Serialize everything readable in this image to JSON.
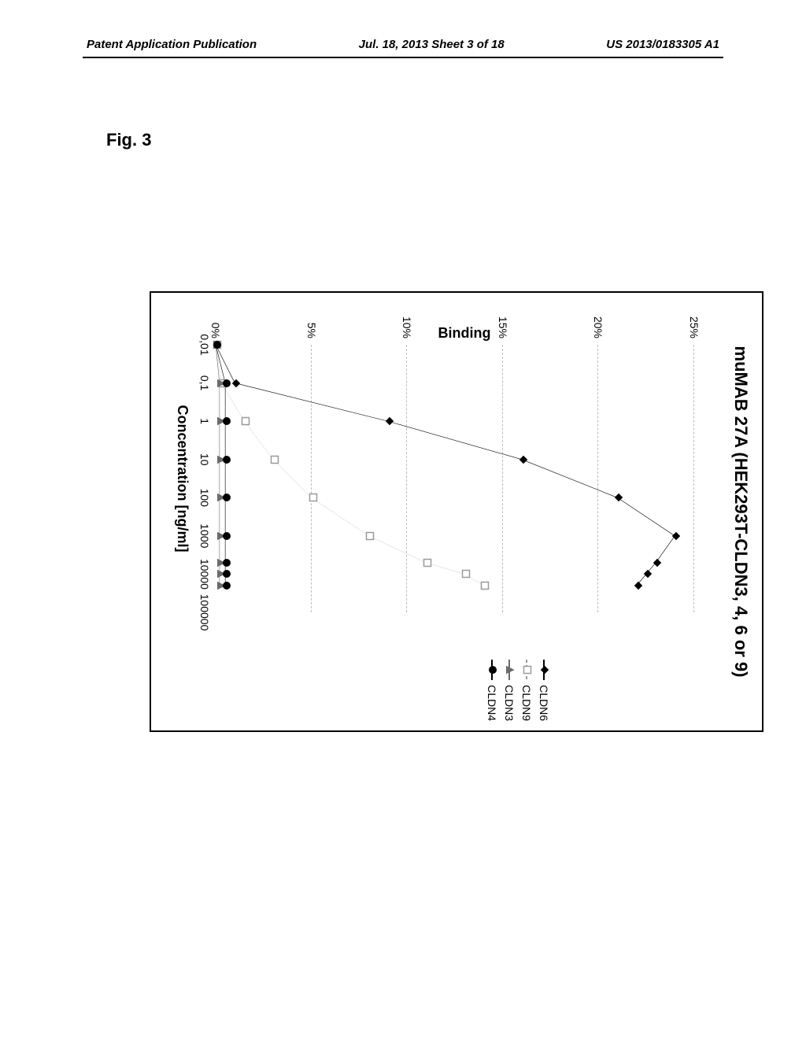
{
  "header": {
    "left": "Patent Application Publication",
    "center": "Jul. 18, 2013  Sheet 3 of 18",
    "right": "US 2013/0183305 A1"
  },
  "figure_label": "Fig. 3",
  "chart": {
    "type": "line",
    "title": "muMAB 27A (HEK293T-CLDN3, 4, 6 or 9)",
    "xlabel": "Concentration [ng/ml]",
    "ylabel": "Binding",
    "x_scale": "log",
    "xlim_log10": [
      -2,
      5
    ],
    "ylim": [
      0,
      26
    ],
    "y_ticks": [
      0,
      5,
      10,
      15,
      20,
      25
    ],
    "y_tick_labels": [
      "0%",
      "5%",
      "10%",
      "15%",
      "20%",
      "25%"
    ],
    "x_ticks_log10": [
      -2,
      -1,
      0,
      1,
      2,
      3,
      4,
      5
    ],
    "x_tick_labels": [
      "0,01",
      "0,1",
      "1",
      "10",
      "100",
      "1000",
      "10000",
      "100000"
    ],
    "grid_color": "#bdbdbd",
    "background_color": "#ffffff",
    "border_color": "#000000",
    "legend_position": "right",
    "series": [
      {
        "name": "CLDN6",
        "marker": "diamond",
        "color": "#000000",
        "line_style": "solid",
        "line_width": 2,
        "x_log10": [
          -2,
          -1,
          0,
          1,
          2,
          3,
          3.7,
          4,
          4.3
        ],
        "y": [
          0,
          1,
          9,
          16,
          21,
          24,
          23,
          22.5,
          22
        ]
      },
      {
        "name": "CLDN9",
        "marker": "square",
        "color": "#9a9a9a",
        "line_style": "dashed",
        "line_width": 1.5,
        "x_log10": [
          -2,
          -1,
          0,
          1,
          2,
          3,
          3.7,
          4,
          4.3
        ],
        "y": [
          0,
          0.3,
          1.5,
          3,
          5,
          8,
          11,
          13,
          14
        ]
      },
      {
        "name": "CLDN3",
        "marker": "triangle",
        "color": "#6b6b6b",
        "line_style": "solid",
        "line_width": 2,
        "x_log10": [
          -2,
          -1,
          0,
          1,
          2,
          3,
          3.7,
          4,
          4.3
        ],
        "y": [
          0,
          0.2,
          0.2,
          0.2,
          0.2,
          0.2,
          0.2,
          0.2,
          0.2
        ]
      },
      {
        "name": "CLDN4",
        "marker": "circle",
        "color": "#000000",
        "line_style": "solid",
        "line_width": 2,
        "x_log10": [
          -2,
          -1,
          0,
          1,
          2,
          3,
          3.7,
          4,
          4.3
        ],
        "y": [
          0,
          0.5,
          0.5,
          0.5,
          0.5,
          0.5,
          0.5,
          0.5,
          0.5
        ]
      }
    ]
  }
}
